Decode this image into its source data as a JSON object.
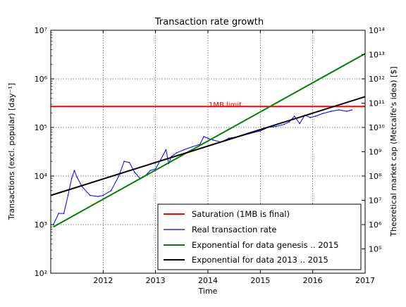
{
  "chart_data": {
    "type": "line",
    "title": "Transaction rate growth",
    "xlabel": "Time",
    "ylabel": "Transactions (excl. popular) [day⁻¹]",
    "y2label": "Theoretical market cap (Metcalfe's idea) [$]",
    "xlim": [
      2011.0,
      2017.0
    ],
    "ylim": [
      100,
      10000000
    ],
    "y2lim": [
      10000.0,
      100000000000000.0
    ],
    "yscale": "log",
    "y2scale": "log",
    "grid": true,
    "legend_position": "lower-right",
    "x_ticks": [
      "2012",
      "2013",
      "2014",
      "2015",
      "2016",
      "2017"
    ],
    "x_tick_values": [
      2012,
      2013,
      2014,
      2015,
      2016,
      2017
    ],
    "y_ticks": [
      "10²",
      "10³",
      "10⁴",
      "10⁵",
      "10⁶",
      "10⁷"
    ],
    "y_tick_values": [
      2,
      3,
      4,
      5,
      6,
      7
    ],
    "y2_ticks": [
      "10⁵",
      "10⁶",
      "10⁷",
      "10⁸",
      "10⁹",
      "10¹⁰",
      "10¹¹",
      "10¹²",
      "10¹³",
      "10¹⁴"
    ],
    "y2_tick_values": [
      5,
      6,
      7,
      8,
      9,
      10,
      11,
      12,
      13,
      14
    ],
    "annotations": [
      {
        "text": "1MB limit",
        "x": 2014.5,
        "y": 280000
      }
    ],
    "series": [
      {
        "name": "Saturation (1MB is final)",
        "color": "#ff0000",
        "x": [
          2011.0,
          2017.0
        ],
        "y": [
          270000,
          270000
        ]
      },
      {
        "name": "Real transaction rate",
        "color": "#0000ff",
        "x": [
          2011.05,
          2011.15,
          2011.25,
          2011.33,
          2011.4,
          2011.45,
          2011.5,
          2011.6,
          2011.75,
          2011.9,
          2012.0,
          2012.15,
          2012.3,
          2012.4,
          2012.5,
          2012.6,
          2012.7,
          2012.8,
          2012.9,
          2013.0,
          2013.1,
          2013.2,
          2013.25,
          2013.3,
          2013.4,
          2013.55,
          2013.7,
          2013.85,
          2013.92,
          2014.0,
          2014.1,
          2014.25,
          2014.4,
          2014.6,
          2014.8,
          2015.0,
          2015.15,
          2015.3,
          2015.45,
          2015.55,
          2015.65,
          2015.75,
          2015.85,
          2015.95,
          2016.05,
          2016.2,
          2016.35,
          2016.5,
          2016.65,
          2016.75
        ],
        "y": [
          1000,
          1700,
          1700,
          4000,
          9000,
          13000,
          9500,
          6000,
          4000,
          3800,
          4000,
          5000,
          10000,
          20000,
          19000,
          12000,
          9000,
          10000,
          13000,
          14000,
          22000,
          35000,
          18000,
          25000,
          30000,
          35000,
          40000,
          45000,
          65000,
          60000,
          55000,
          50000,
          60000,
          65000,
          75000,
          85000,
          100000,
          105000,
          115000,
          130000,
          170000,
          120000,
          180000,
          160000,
          170000,
          195000,
          215000,
          230000,
          215000,
          230000
        ]
      },
      {
        "name": "Exponential for data genesis .. 2015",
        "color": "#008000",
        "x": [
          2011.05,
          2017.0
        ],
        "y": [
          900,
          3300000
        ]
      },
      {
        "name": "Exponential for data 2013 .. 2015",
        "color": "#000000",
        "x": [
          2011.0,
          2017.0
        ],
        "y": [
          4000,
          430000
        ]
      }
    ]
  }
}
